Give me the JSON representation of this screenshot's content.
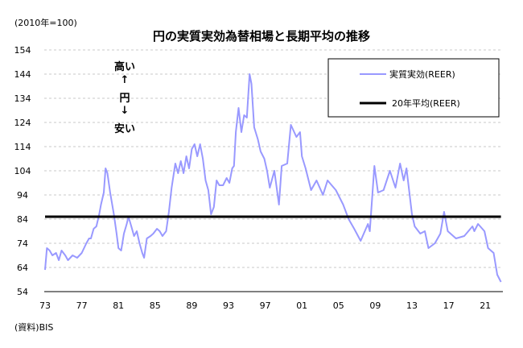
{
  "chart_data": {
    "type": "line",
    "title": "円の実質実効為替相場と長期平均の推移",
    "unit_label": "(2010年=100)",
    "source": "(資料)BIS",
    "annotations": {
      "high": "高い",
      "up_arrow": "↑",
      "yen": "円",
      "down_arrow": "↓",
      "low": "安い"
    },
    "ylim": [
      54,
      154
    ],
    "yticks": [
      54,
      64,
      74,
      84,
      94,
      104,
      114,
      124,
      134,
      144,
      154
    ],
    "xlim": [
      1973,
      2022.7
    ],
    "xticks": [
      {
        "year": 1973,
        "label": "73"
      },
      {
        "year": 1977,
        "label": "77"
      },
      {
        "year": 1981,
        "label": "81"
      },
      {
        "year": 1985,
        "label": "85"
      },
      {
        "year": 1989,
        "label": "89"
      },
      {
        "year": 1993,
        "label": "93"
      },
      {
        "year": 1997,
        "label": "97"
      },
      {
        "year": 2001,
        "label": "01"
      },
      {
        "year": 2005,
        "label": "05"
      },
      {
        "year": 2009,
        "label": "09"
      },
      {
        "year": 2013,
        "label": "13"
      },
      {
        "year": 2017,
        "label": "17"
      },
      {
        "year": 2021,
        "label": "21"
      }
    ],
    "grid": true,
    "legend_placement": "top-right",
    "series": [
      {
        "name": "実質実効(REER)",
        "color": "#9999ff",
        "x": [
          1973.0,
          1973.2,
          1973.5,
          1973.8,
          1974.2,
          1974.5,
          1974.8,
          1975.2,
          1975.5,
          1976.0,
          1976.5,
          1977.0,
          1977.5,
          1977.8,
          1978.0,
          1978.3,
          1978.6,
          1978.9,
          1979.1,
          1979.4,
          1979.6,
          1979.8,
          1980.1,
          1980.5,
          1980.8,
          1981.0,
          1981.3,
          1981.6,
          1981.9,
          1982.1,
          1982.4,
          1982.7,
          1983.0,
          1983.3,
          1983.6,
          1983.8,
          1984.1,
          1984.5,
          1984.8,
          1985.2,
          1985.5,
          1985.8,
          1986.2,
          1986.5,
          1986.8,
          1987.2,
          1987.5,
          1987.8,
          1988.1,
          1988.4,
          1988.7,
          1989.0,
          1989.3,
          1989.6,
          1989.9,
          1990.2,
          1990.5,
          1990.8,
          1991.1,
          1991.4,
          1991.7,
          1992.0,
          1992.4,
          1992.8,
          1993.1,
          1993.4,
          1993.6,
          1993.8,
          1994.1,
          1994.4,
          1994.7,
          1995.0,
          1995.3,
          1995.5,
          1995.8,
          1996.2,
          1996.5,
          1996.9,
          1997.2,
          1997.5,
          1998.0,
          1998.5,
          1998.8,
          1999.4,
          1999.8,
          2000.4,
          2000.8,
          2001.0,
          2001.4,
          2002.0,
          2002.6,
          2003.3,
          2003.8,
          2004.7,
          2005.5,
          2006.1,
          2006.7,
          2007.4,
          2008.2,
          2008.4,
          2008.9,
          2009.3,
          2009.9,
          2010.6,
          2011.2,
          2011.7,
          2012.1,
          2012.4,
          2013.0,
          2013.3,
          2013.9,
          2014.4,
          2014.8,
          2015.5,
          2016.1,
          2016.5,
          2016.9,
          2017.8,
          2018.7,
          2019.6,
          2019.8,
          2020.2,
          2020.9,
          2021.3,
          2021.9,
          2022.3,
          2022.7
        ],
        "values": [
          63,
          72,
          71,
          69,
          70,
          67,
          71,
          69,
          67,
          69,
          68,
          70,
          74,
          76,
          76,
          80,
          81,
          86,
          90,
          95,
          105,
          103,
          95,
          86,
          78,
          72,
          71,
          78,
          82,
          85,
          81,
          77,
          79,
          74,
          70,
          68,
          76,
          77,
          78,
          80,
          79,
          77,
          79,
          87,
          97,
          107,
          103,
          108,
          103,
          110,
          105,
          113,
          115,
          110,
          115,
          109,
          100,
          96,
          86,
          89,
          100,
          98,
          98,
          101,
          99,
          105,
          106,
          120,
          130,
          120,
          127,
          126,
          144,
          140,
          122,
          117,
          112,
          109,
          104,
          97,
          104,
          90,
          106,
          107,
          123,
          118,
          120,
          110,
          105,
          96,
          100,
          94,
          100,
          96,
          90,
          84,
          80,
          75,
          82,
          79,
          106,
          95,
          96,
          104,
          97,
          107,
          100,
          105,
          86,
          81,
          78,
          79,
          72,
          74,
          78,
          87,
          79,
          76,
          77,
          81,
          79,
          82,
          79,
          72,
          70,
          61,
          58
        ]
      },
      {
        "name": "20年平均(REER)",
        "color": "#000000",
        "x": [
          1973.0,
          2022.7
        ],
        "values": [
          85,
          85
        ]
      }
    ]
  }
}
